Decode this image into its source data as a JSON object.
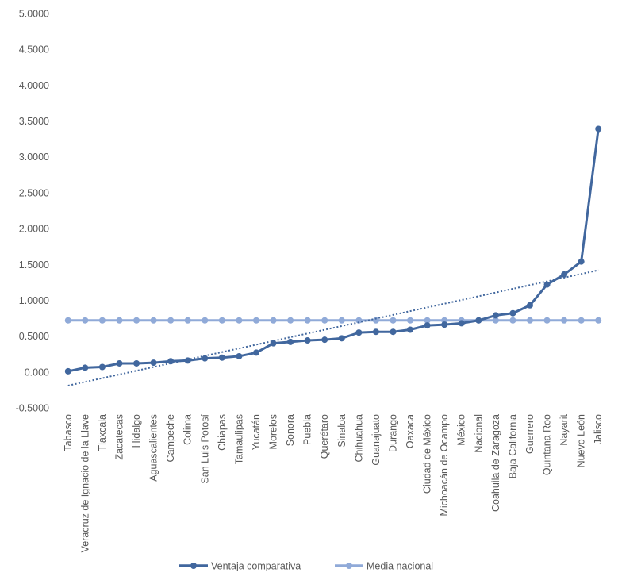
{
  "chart_data": {
    "type": "line",
    "categories": [
      "Tabasco",
      "Veracruz de Ignacio de la Llave",
      "Tlaxcala",
      "Zacatecas",
      "Hidalgo",
      "Aguascalientes",
      "Campeche",
      "Colima",
      "San Luis Potosí",
      "Chiapas",
      "Tamaulipas",
      "Yucatán",
      "Morelos",
      "Sonora",
      "Puebla",
      "Querétaro",
      "Sinaloa",
      "Chihuahua",
      "Guanajuato",
      "Durango",
      "Oaxaca",
      "Ciudad de México",
      "Michoacán de Ocampo",
      "México",
      "Nacional",
      "Coahuila de Zaragoza",
      "Baja California",
      "Guerrero",
      "Quintana Roo",
      "Nayarit",
      "Nuevo León",
      "Jalisco"
    ],
    "series": [
      {
        "name": "Ventaja comparativa",
        "color": "#41679e",
        "values": [
          0.01,
          0.06,
          0.07,
          0.12,
          0.12,
          0.13,
          0.15,
          0.16,
          0.19,
          0.2,
          0.22,
          0.27,
          0.4,
          0.42,
          0.44,
          0.45,
          0.47,
          0.55,
          0.56,
          0.56,
          0.59,
          0.65,
          0.66,
          0.68,
          0.72,
          0.79,
          0.82,
          0.93,
          1.22,
          1.36,
          1.54,
          3.39
        ]
      },
      {
        "name": "Media nacional",
        "color": "#90aad8",
        "values": [
          0.72,
          0.72,
          0.72,
          0.72,
          0.72,
          0.72,
          0.72,
          0.72,
          0.72,
          0.72,
          0.72,
          0.72,
          0.72,
          0.72,
          0.72,
          0.72,
          0.72,
          0.72,
          0.72,
          0.72,
          0.72,
          0.72,
          0.72,
          0.72,
          0.72,
          0.72,
          0.72,
          0.72,
          0.72,
          0.72,
          0.72,
          0.72
        ]
      }
    ],
    "trendline": {
      "style": "dotted",
      "color": "#41679e",
      "start_value": -0.19,
      "end_value": 1.42
    },
    "title": "",
    "xlabel": "",
    "ylabel": "",
    "ylim": [
      -0.5,
      5.0
    ],
    "yticks": [
      -0.5,
      0.0,
      0.5,
      1.0,
      1.5,
      2.0,
      2.5,
      3.0,
      3.5,
      4.0,
      4.5,
      5.0
    ],
    "ytick_labels": [
      "-0.5000",
      "0.000",
      "0.5000",
      "1.0000",
      "1.5000",
      "2.0000",
      "2.5000",
      "3.0000",
      "3.5000",
      "4.0000",
      "4.5000",
      "5.0000"
    ],
    "grid": false,
    "legend_position": "bottom"
  }
}
